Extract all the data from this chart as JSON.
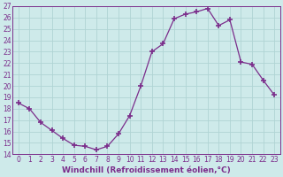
{
  "x": [
    0,
    1,
    2,
    3,
    4,
    5,
    6,
    7,
    8,
    9,
    10,
    11,
    12,
    13,
    14,
    15,
    16,
    17,
    18,
    19,
    20,
    21,
    22,
    23
  ],
  "y": [
    18.5,
    18.0,
    16.8,
    16.1,
    15.4,
    14.8,
    14.7,
    14.4,
    14.7,
    15.8,
    17.4,
    20.0,
    23.0,
    23.7,
    25.9,
    26.3,
    26.5,
    26.8,
    25.3,
    25.8,
    22.1,
    21.9,
    20.5,
    19.2
  ],
  "line_color": "#7b2d8b",
  "marker": "+",
  "marker_size": 4,
  "marker_lw": 1.2,
  "bg_color": "#ceeaea",
  "grid_color": "#b0d4d4",
  "xlabel": "Windchill (Refroidissement éolien,°C)",
  "ylim": [
    14,
    27
  ],
  "xlim_min": -0.5,
  "xlim_max": 23.5,
  "yticks": [
    14,
    15,
    16,
    17,
    18,
    19,
    20,
    21,
    22,
    23,
    24,
    25,
    26,
    27
  ],
  "xticks": [
    0,
    1,
    2,
    3,
    4,
    5,
    6,
    7,
    8,
    9,
    10,
    11,
    12,
    13,
    14,
    15,
    16,
    17,
    18,
    19,
    20,
    21,
    22,
    23
  ],
  "tick_color": "#7b2d8b",
  "label_color": "#7b2d8b",
  "tick_fontsize": 5.5,
  "xlabel_fontsize": 6.5,
  "spine_color": "#7b2d8b",
  "linewidth": 0.9
}
